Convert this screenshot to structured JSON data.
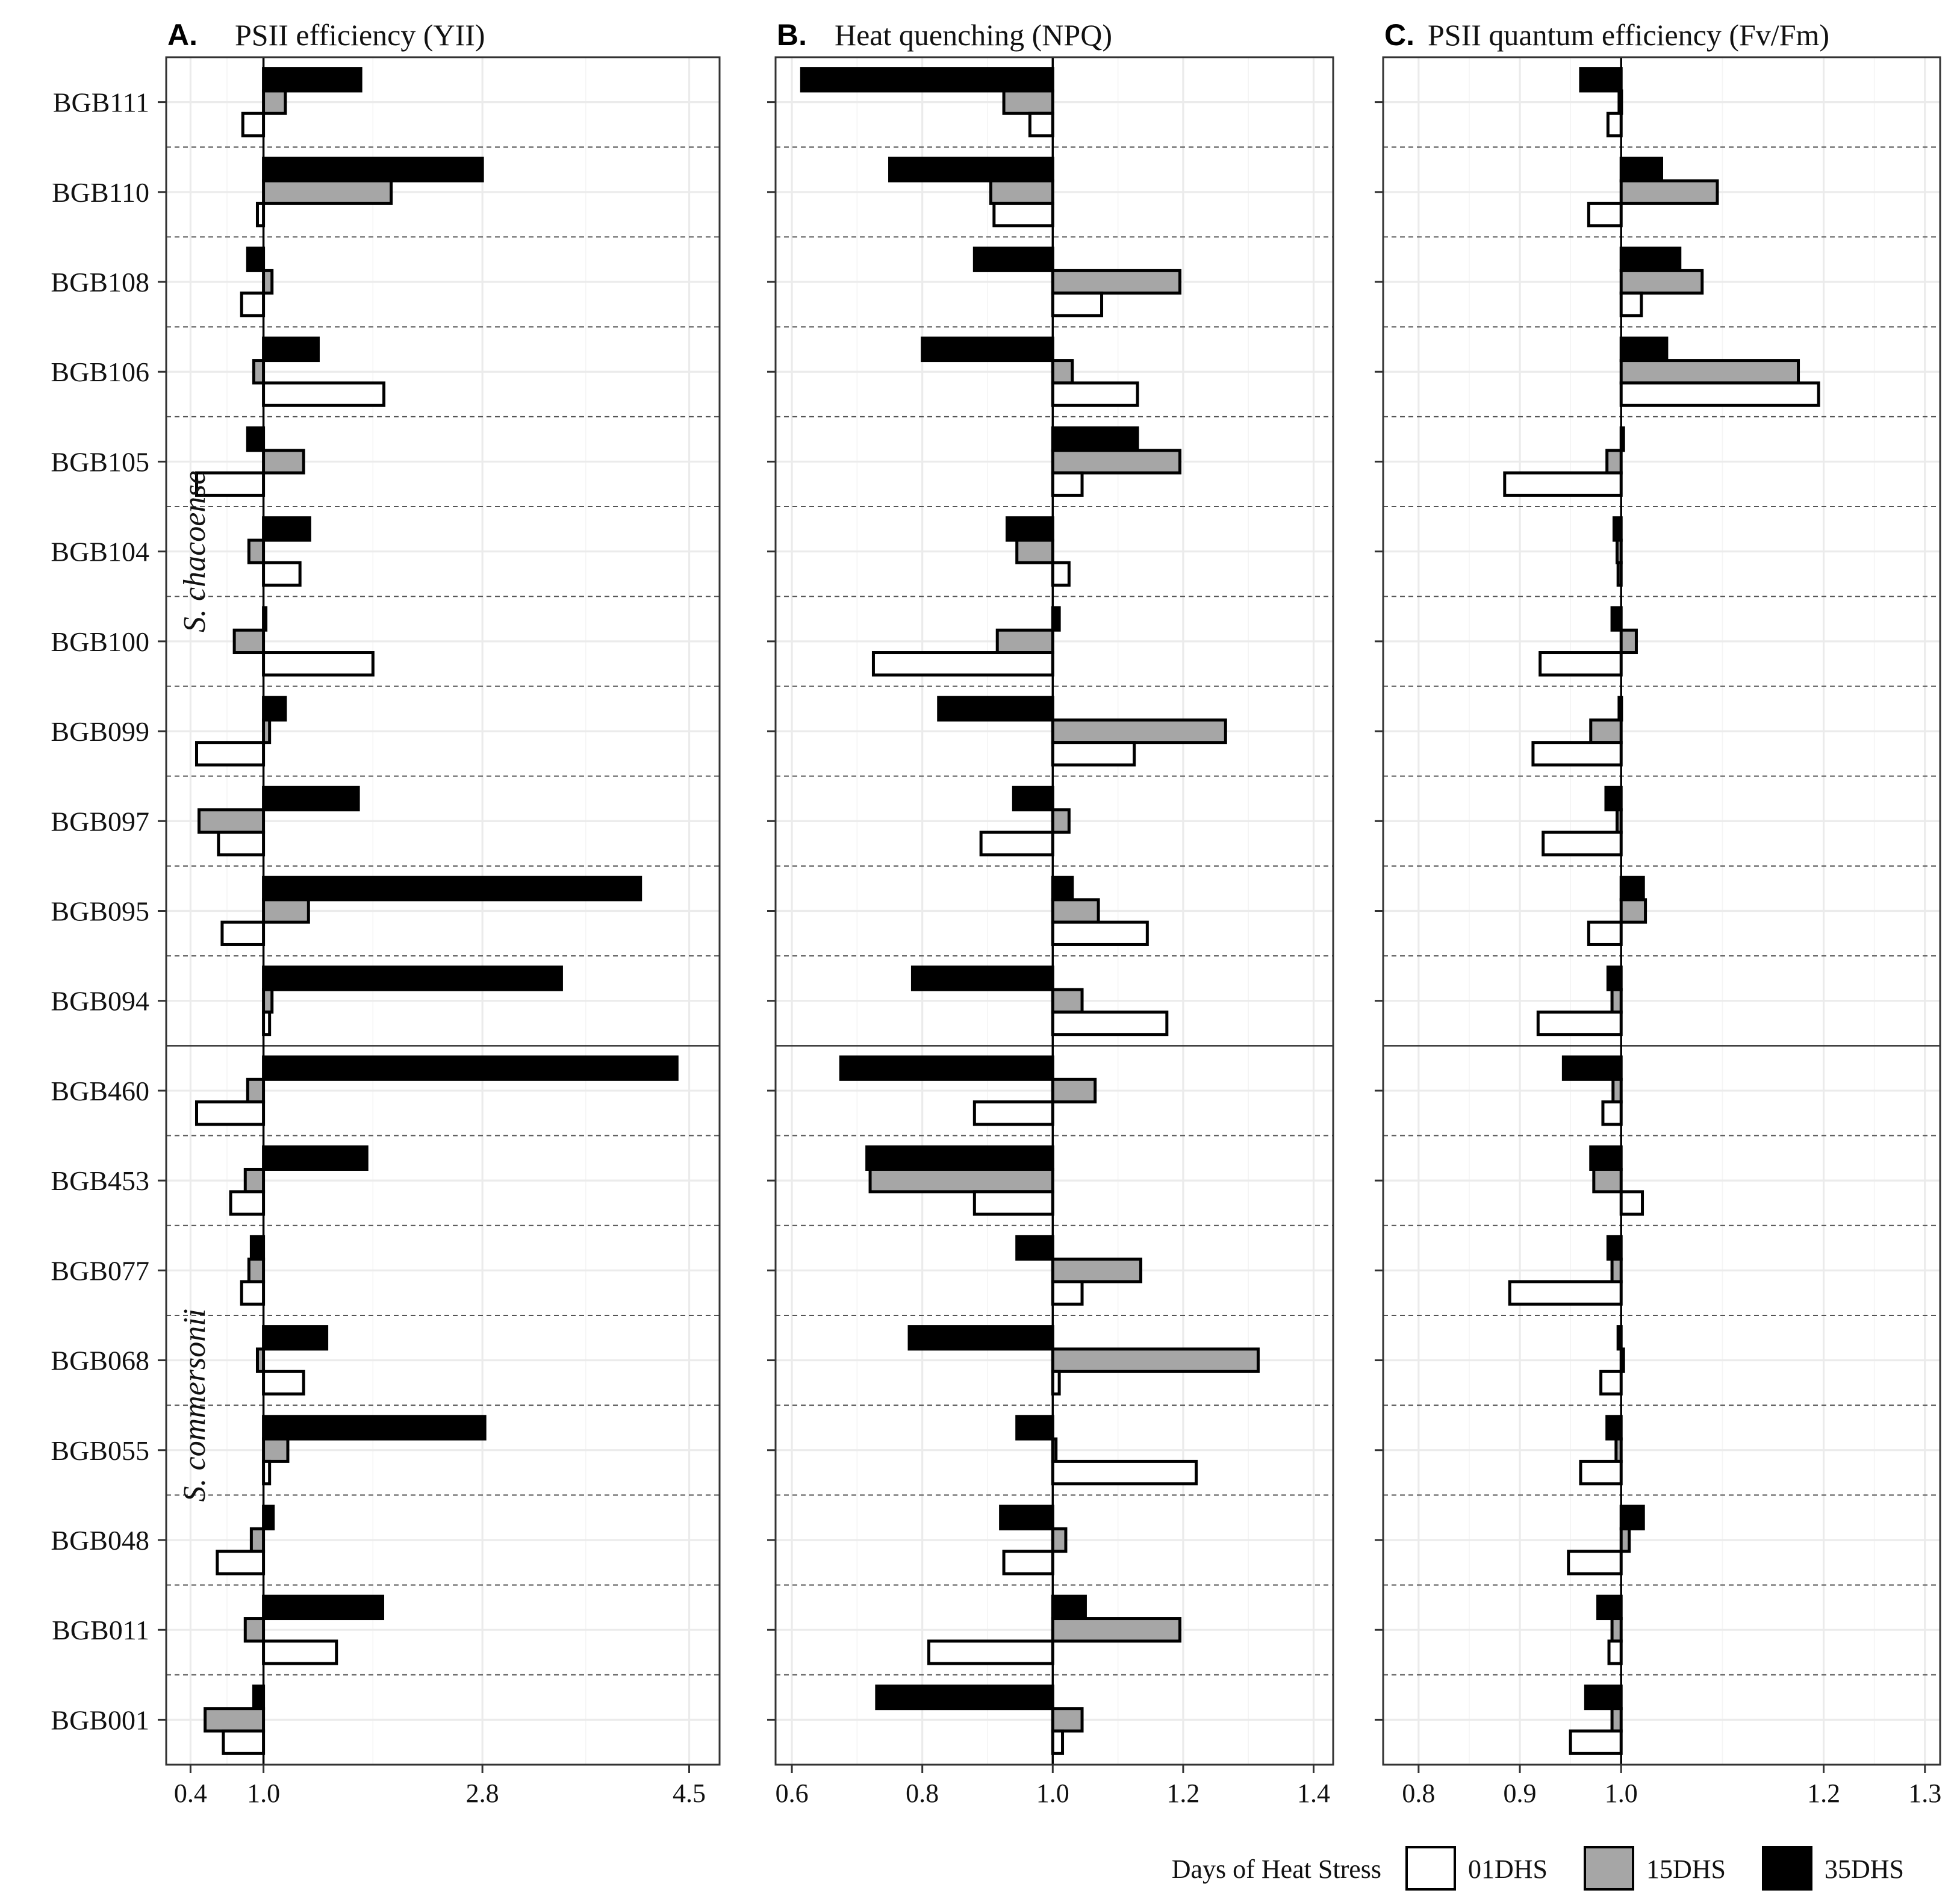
{
  "chart_data": {
    "type": "bar",
    "orientation": "horizontal",
    "categories": [
      "BGB111",
      "BGB110",
      "BGB108",
      "BGB106",
      "BGB105",
      "BGB104",
      "BGB100",
      "BGB099",
      "BGB097",
      "BGB095",
      "BGB094",
      "BGB460",
      "BGB453",
      "BGB077",
      "BGB068",
      "BGB055",
      "BGB048",
      "BGB011",
      "BGB001"
    ],
    "groups": [
      {
        "name": "S. chacoense",
        "categories": [
          "BGB111",
          "BGB110",
          "BGB108",
          "BGB106",
          "BGB105",
          "BGB104",
          "BGB100",
          "BGB099",
          "BGB097",
          "BGB095",
          "BGB094"
        ]
      },
      {
        "name": "S. commersonii",
        "categories": [
          "BGB460",
          "BGB453",
          "BGB077",
          "BGB068",
          "BGB055",
          "BGB048",
          "BGB011",
          "BGB001"
        ]
      }
    ],
    "series_order": [
      "35DHS",
      "15DHS",
      "01DHS"
    ],
    "series_colors": {
      "01DHS": "#ffffff",
      "15DHS": "#a6a6a6",
      "35DHS": "#000000"
    },
    "panels": [
      {
        "letter": "A.",
        "title": "PSII efficiency (YII)",
        "reference": 1.0,
        "xlim": [
          0.2,
          4.75
        ],
        "ticks": [
          0.4,
          1.0,
          2.8,
          4.5
        ],
        "tick_labels": [
          "0.4",
          "1.0",
          "2.8",
          "4.5"
        ],
        "series": [
          {
            "name": "35DHS",
            "values": [
              1.8,
              2.8,
              0.87,
              1.45,
              0.87,
              1.38,
              1.0,
              1.18,
              1.78,
              4.1,
              3.45,
              4.4,
              1.85,
              0.9,
              1.52,
              2.82,
              1.08,
              1.98,
              0.92
            ]
          },
          {
            "name": "15DHS",
            "values": [
              1.18,
              2.05,
              1.07,
              0.92,
              1.33,
              0.88,
              0.76,
              1.05,
              0.47,
              1.37,
              1.07,
              0.87,
              0.85,
              0.88,
              0.95,
              1.2,
              0.9,
              0.85,
              0.52
            ]
          },
          {
            "name": "01DHS",
            "values": [
              0.83,
              0.95,
              0.82,
              1.99,
              0.45,
              1.3,
              1.9,
              0.45,
              0.63,
              0.66,
              1.05,
              0.45,
              0.73,
              0.82,
              1.33,
              1.05,
              0.62,
              1.6,
              0.67
            ]
          }
        ]
      },
      {
        "letter": "B.",
        "title": "Heat quenching (NPQ)",
        "reference": 1.0,
        "xlim": [
          0.575,
          1.43
        ],
        "ticks": [
          0.6,
          0.8,
          1.0,
          1.2,
          1.4
        ],
        "tick_labels": [
          "0.6",
          "0.8",
          "1.0",
          "1.2",
          "1.4"
        ],
        "series": [
          {
            "name": "35DHS",
            "values": [
              0.615,
              0.75,
              0.88,
              0.8,
              1.13,
              0.93,
              1.01,
              0.825,
              0.94,
              1.03,
              0.785,
              0.675,
              0.715,
              0.945,
              0.78,
              0.945,
              0.92,
              1.05,
              0.73
            ]
          },
          {
            "name": "15DHS",
            "values": [
              0.925,
              0.905,
              1.195,
              1.03,
              1.195,
              0.945,
              0.915,
              1.265,
              1.025,
              1.07,
              1.045,
              1.065,
              0.72,
              1.135,
              1.315,
              1.005,
              1.02,
              1.195,
              1.045
            ]
          },
          {
            "name": "01DHS",
            "values": [
              0.965,
              0.91,
              1.075,
              1.13,
              1.045,
              1.025,
              0.725,
              1.125,
              0.89,
              1.145,
              1.175,
              0.88,
              0.88,
              1.045,
              1.01,
              1.22,
              0.925,
              0.81,
              1.015
            ]
          }
        ]
      },
      {
        "letter": "C.",
        "title": "PSII quantum efficiency (Fv/Fm)",
        "reference": 1.0,
        "xlim": [
          0.765,
          1.315
        ],
        "ticks": [
          0.8,
          0.9,
          1.0,
          1.2,
          1.3
        ],
        "tick_labels": [
          "0.8",
          "0.9",
          "1.0",
          "1.2",
          "1.3"
        ],
        "series": [
          {
            "name": "35DHS",
            "values": [
              0.96,
              1.04,
              1.058,
              1.045,
              1.0,
              0.993,
              0.991,
              0.998,
              0.985,
              1.022,
              0.987,
              0.943,
              0.97,
              0.987,
              0.997,
              0.986,
              1.022,
              0.977,
              0.965
            ]
          },
          {
            "name": "15DHS",
            "values": [
              0.998,
              1.095,
              1.08,
              1.175,
              0.986,
              0.996,
              1.015,
              0.97,
              0.996,
              1.024,
              0.991,
              0.992,
              0.973,
              0.991,
              1.001,
              0.995,
              1.008,
              0.991,
              0.991
            ]
          },
          {
            "name": "01DHS",
            "values": [
              0.987,
              0.968,
              1.02,
              1.195,
              0.885,
              0.997,
              0.92,
              0.913,
              0.923,
              0.968,
              0.918,
              0.982,
              1.021,
              0.89,
              0.98,
              0.96,
              0.948,
              0.988,
              0.95
            ]
          }
        ]
      }
    ],
    "legend": {
      "title": "Days of Heat Stress",
      "entries": [
        "01DHS",
        "15DHS",
        "35DHS"
      ],
      "placement": "bottom-right"
    }
  }
}
